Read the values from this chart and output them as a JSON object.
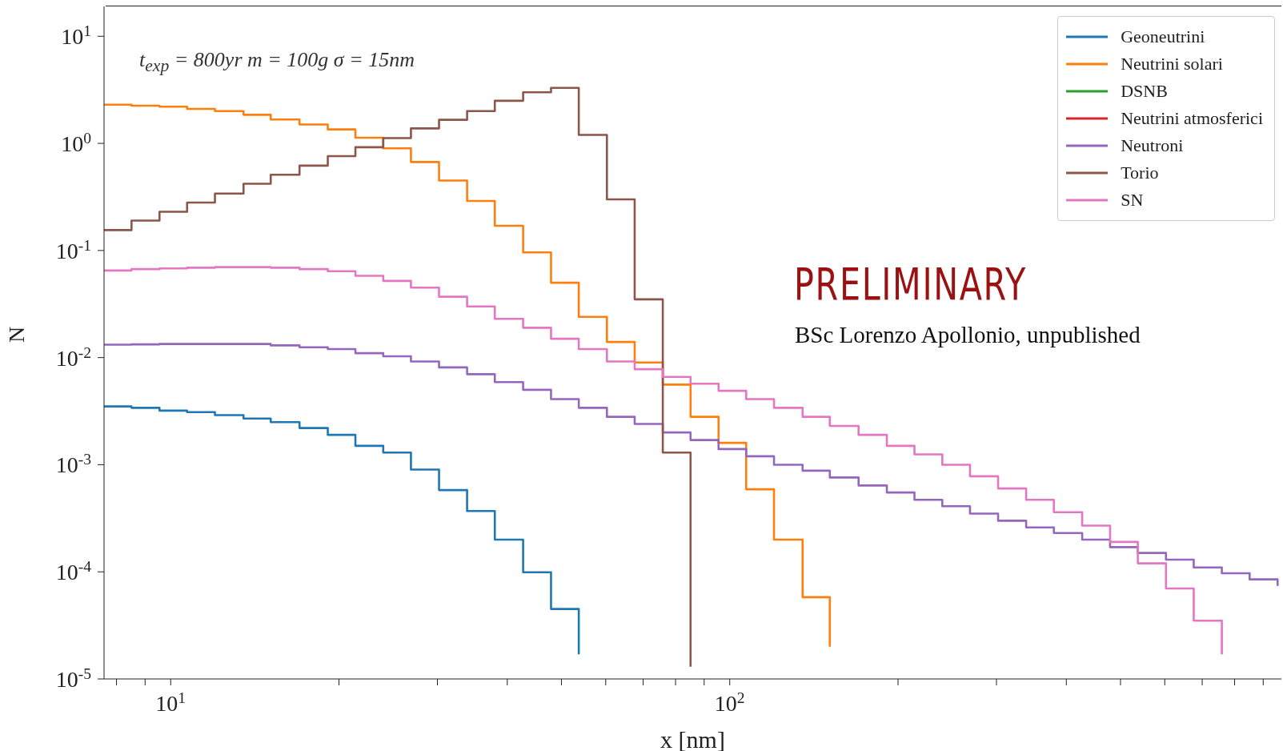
{
  "chart_data": {
    "type": "step",
    "xlabel": "x [nm]",
    "ylabel": "N",
    "x": [
      7.6,
      8.51,
      9.55,
      10.7,
      12.0,
      13.5,
      15.1,
      17.0,
      19.1,
      21.4,
      24.0,
      26.9,
      30.2,
      33.9,
      38.0,
      42.7,
      47.9,
      53.7,
      60.3,
      67.6,
      75.9,
      85.1,
      95.5,
      107,
      120,
      135,
      151,
      170,
      191,
      214,
      240,
      269,
      302,
      339,
      380,
      427,
      479,
      537,
      603,
      676,
      759,
      851,
      955
    ],
    "series": [
      {
        "name": "Geoneutrini",
        "color": "#1f77b4",
        "values": [
          0.0035,
          0.0034,
          0.0032,
          0.0031,
          0.0029,
          0.0027,
          0.0025,
          0.0022,
          0.0019,
          0.0015,
          0.0013,
          0.0009,
          0.00058,
          0.00037,
          0.0002,
          9.9e-05,
          4.5e-05,
          1.7e-05,
          null,
          null,
          null,
          null,
          null,
          null,
          null,
          null,
          null,
          null,
          null,
          null,
          null,
          null,
          null,
          null,
          null,
          null,
          null,
          null,
          null,
          null,
          null,
          null,
          null
        ]
      },
      {
        "name": "Neutrini solari",
        "color": "#ff7f0e",
        "values": [
          2.3,
          2.25,
          2.2,
          2.1,
          2.0,
          1.85,
          1.67,
          1.5,
          1.35,
          1.13,
          0.9,
          0.67,
          0.45,
          0.29,
          0.17,
          0.096,
          0.05,
          0.024,
          0.014,
          0.009,
          0.0056,
          0.0028,
          0.0016,
          0.00059,
          0.0002,
          5.8e-05,
          2e-05,
          null,
          null,
          null,
          null,
          null,
          null,
          null,
          null,
          null,
          null,
          null,
          null,
          null,
          null,
          null,
          null
        ]
      },
      {
        "name": "DSNB",
        "color": "#2ca02c",
        "values": [
          null,
          null,
          null,
          null,
          null,
          null,
          null,
          null,
          null,
          null,
          null,
          null,
          null,
          null,
          null,
          null,
          null,
          null,
          null,
          null,
          null,
          null,
          null,
          null,
          null,
          null,
          null,
          null,
          null,
          null,
          null,
          null,
          null,
          null,
          null,
          null,
          null,
          null,
          null,
          null,
          null,
          null,
          null
        ]
      },
      {
        "name": "Neutrini atmosferici",
        "color": "#d62728",
        "values": [
          null,
          null,
          null,
          null,
          null,
          null,
          null,
          null,
          null,
          null,
          null,
          null,
          null,
          null,
          null,
          null,
          null,
          null,
          null,
          null,
          null,
          null,
          null,
          null,
          null,
          null,
          null,
          null,
          null,
          null,
          null,
          null,
          null,
          null,
          null,
          null,
          null,
          null,
          null,
          null,
          null,
          null,
          null
        ]
      },
      {
        "name": "Neutroni",
        "color": "#9467bd",
        "values": [
          0.0132,
          0.0133,
          0.0134,
          0.0134,
          0.0134,
          0.0134,
          0.013,
          0.0125,
          0.012,
          0.011,
          0.0103,
          0.0092,
          0.0081,
          0.007,
          0.0059,
          0.005,
          0.0041,
          0.0034,
          0.0028,
          0.0024,
          0.002,
          0.0017,
          0.0014,
          0.0012,
          0.001,
          0.00088,
          0.00076,
          0.00064,
          0.00055,
          0.00047,
          0.00041,
          0.00035,
          0.0003,
          0.00026,
          0.00023,
          0.0002,
          0.00017,
          0.00015,
          0.00013,
          0.00011,
          9.7e-05,
          8.5e-05,
          7.4e-05
        ]
      },
      {
        "name": "Torio",
        "color": "#8c564b",
        "values": [
          0.155,
          0.19,
          0.23,
          0.28,
          0.34,
          0.42,
          0.51,
          0.62,
          0.76,
          0.92,
          1.12,
          1.38,
          1.66,
          2.0,
          2.5,
          3.0,
          3.3,
          1.2,
          0.3,
          0.035,
          0.0013,
          1.3e-05,
          null,
          null,
          null,
          null,
          null,
          null,
          null,
          null,
          null,
          null,
          null,
          null,
          null,
          null,
          null,
          null,
          null,
          null,
          null,
          null,
          null
        ]
      },
      {
        "name": "SN",
        "color": "#e377c2",
        "values": [
          0.065,
          0.067,
          0.068,
          0.069,
          0.07,
          0.07,
          0.069,
          0.067,
          0.064,
          0.058,
          0.052,
          0.045,
          0.037,
          0.03,
          0.023,
          0.019,
          0.015,
          0.012,
          0.0092,
          0.0078,
          0.0066,
          0.0057,
          0.0049,
          0.0041,
          0.0034,
          0.0028,
          0.0023,
          0.0019,
          0.0015,
          0.00125,
          0.001,
          0.00078,
          0.0006,
          0.00047,
          0.00036,
          0.00027,
          0.00019,
          0.00012,
          7e-05,
          3.5e-05,
          1.7e-05,
          null,
          null
        ]
      }
    ],
    "log": "xy",
    "xlim": [
      7.6,
      970
    ],
    "ylim": [
      1e-05,
      19
    ],
    "xticks": [
      {
        "value": 8,
        "label": null
      },
      {
        "value": 9,
        "label": null
      },
      {
        "value": 10,
        "label": "10$^{1}$"
      },
      {
        "value": 20,
        "label": null
      },
      {
        "value": 30,
        "label": null
      },
      {
        "value": 40,
        "label": null
      },
      {
        "value": 50,
        "label": null
      },
      {
        "value": 60,
        "label": null
      },
      {
        "value": 70,
        "label": null
      },
      {
        "value": 80,
        "label": null
      },
      {
        "value": 90,
        "label": null
      },
      {
        "value": 100,
        "label": "10$^{2}$"
      },
      {
        "value": 200,
        "label": null
      },
      {
        "value": 300,
        "label": null
      },
      {
        "value": 400,
        "label": null
      },
      {
        "value": 500,
        "label": null
      },
      {
        "value": 600,
        "label": null
      },
      {
        "value": 700,
        "label": null
      },
      {
        "value": 800,
        "label": null
      },
      {
        "value": 900,
        "label": null
      }
    ],
    "yticks": [
      {
        "value": 1e-05,
        "label": "10$^{-5}$"
      },
      {
        "value": 0.0001,
        "label": "10$^{-4}$"
      },
      {
        "value": 0.001,
        "label": "10$^{-3}$"
      },
      {
        "value": 0.01,
        "label": "10$^{-2}$"
      },
      {
        "value": 0.1,
        "label": "10$^{-1}$"
      },
      {
        "value": 1,
        "label": "10$^{0}$"
      },
      {
        "value": 10,
        "label": "10$^{1}$"
      }
    ],
    "grid": false,
    "legend": "top right",
    "marker": "none",
    "line_style": "solid",
    "annotations": [
      "t$_{exp}$ = 800yr  m = 100g  σ = 15nm",
      "PRELIMINARY",
      "BSc Lorenzo Apollonio, unpublished"
    ]
  }
}
